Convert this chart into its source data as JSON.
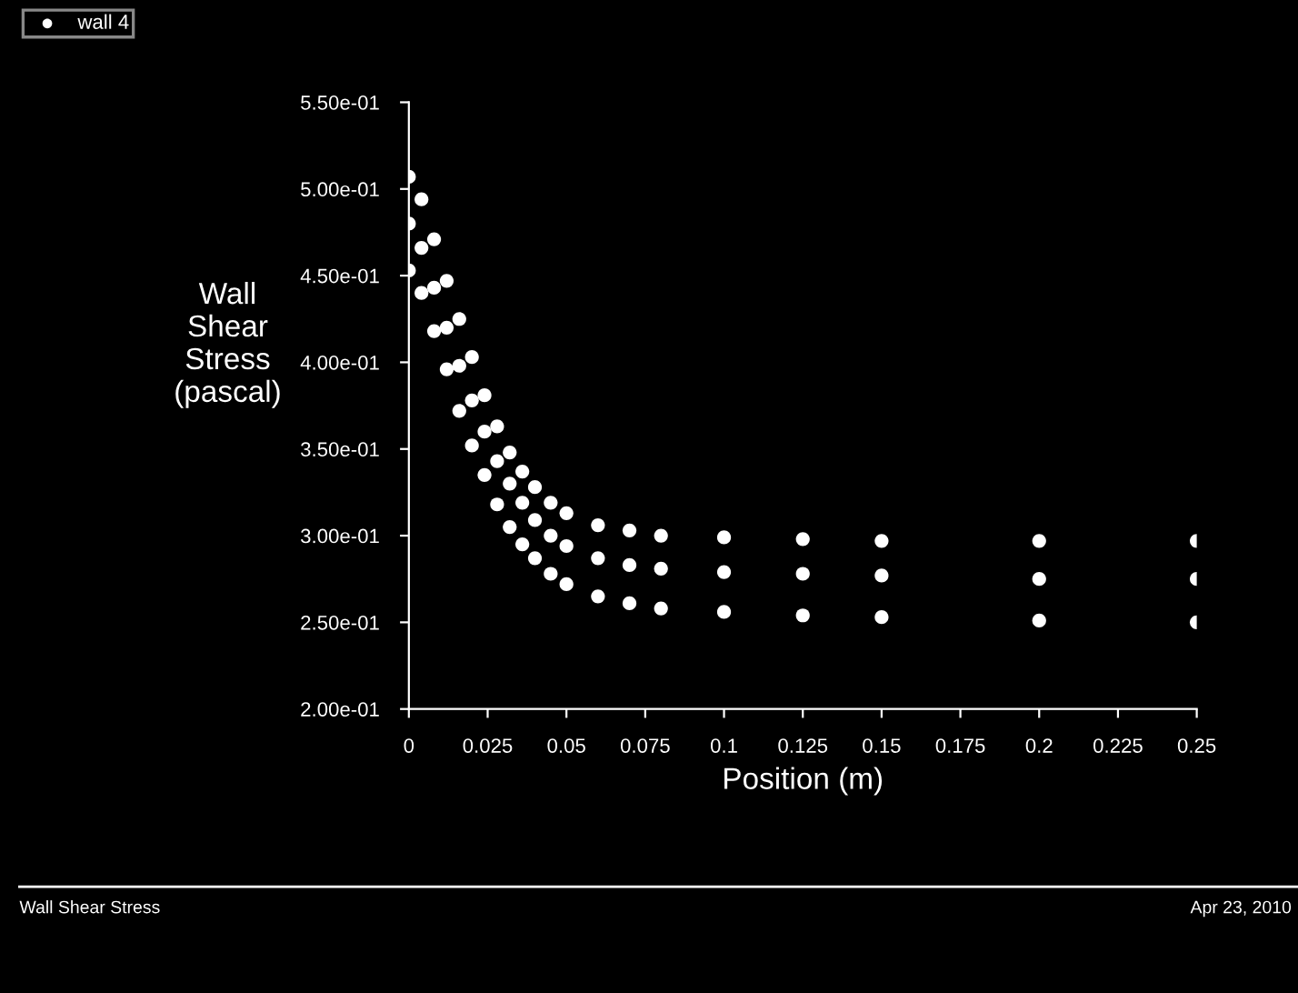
{
  "chart_data": {
    "type": "scatter",
    "xlabel": "Position (m)",
    "ylabel": "Wall\nShear\nStress\n(pascal)",
    "annotations": [
      "Wall Shear Stress",
      "Apr 23, 2010"
    ],
    "series": [
      {
        "name": "wall 4",
        "color": "#ffffff",
        "x": [
          0,
          0.004,
          0.008,
          0.012,
          0.016,
          0.02,
          0.024,
          0.028,
          0.032,
          0.036,
          0.04,
          0.045,
          0.05,
          0.06,
          0.07,
          0.08,
          0.1,
          0.125,
          0.15,
          0.2,
          0.25,
          0,
          0.004,
          0.008,
          0.012,
          0.016,
          0.02,
          0.024,
          0.028,
          0.032,
          0.036,
          0.04,
          0.045,
          0.05,
          0.06,
          0.07,
          0.08,
          0.1,
          0.125,
          0.15,
          0.2,
          0.25,
          0,
          0.004,
          0.008,
          0.012,
          0.016,
          0.02,
          0.024,
          0.028,
          0.032,
          0.036,
          0.04,
          0.045,
          0.05,
          0.06,
          0.07,
          0.08,
          0.1,
          0.125,
          0.15,
          0.2,
          0.25
        ],
        "values": [
          0.507,
          0.494,
          0.471,
          0.447,
          0.425,
          0.403,
          0.381,
          0.363,
          0.348,
          0.337,
          0.328,
          0.319,
          0.313,
          0.306,
          0.303,
          0.3,
          0.299,
          0.298,
          0.297,
          0.297,
          0.297,
          0.48,
          0.466,
          0.443,
          0.42,
          0.398,
          0.378,
          0.36,
          0.343,
          0.33,
          0.319,
          0.309,
          0.3,
          0.294,
          0.287,
          0.283,
          0.281,
          0.279,
          0.278,
          0.277,
          0.275,
          0.275,
          0.453,
          0.44,
          0.418,
          0.396,
          0.372,
          0.352,
          0.335,
          0.318,
          0.305,
          0.295,
          0.287,
          0.278,
          0.272,
          0.265,
          0.261,
          0.258,
          0.256,
          0.254,
          0.253,
          0.251,
          0.25
        ]
      }
    ],
    "marker": "circle",
    "legend": "top left",
    "grid": false,
    "xlim": [
      0,
      0.25
    ],
    "xticks": [
      {
        "value": 0,
        "label": "0"
      },
      0.025,
      0.05,
      0.075,
      0.1,
      0.125,
      0.15,
      0.175,
      0.2,
      0.225,
      0.25
    ],
    "ylim": [
      0.2,
      0.55
    ],
    "yticks": [
      {
        "value": 0.2,
        "label": "2.00e-01"
      },
      {
        "value": 0.25,
        "label": "2.50e-01"
      },
      {
        "value": 0.3,
        "label": "3.00e-01"
      },
      {
        "value": 0.35,
        "label": "3.50e-01"
      },
      {
        "value": 0.4,
        "label": "4.00e-01"
      },
      {
        "value": 0.45,
        "label": "4.50e-01"
      },
      {
        "value": 0.5,
        "label": "5.00e-01"
      },
      {
        "value": 0.55,
        "label": "5.50e-01"
      }
    ]
  }
}
